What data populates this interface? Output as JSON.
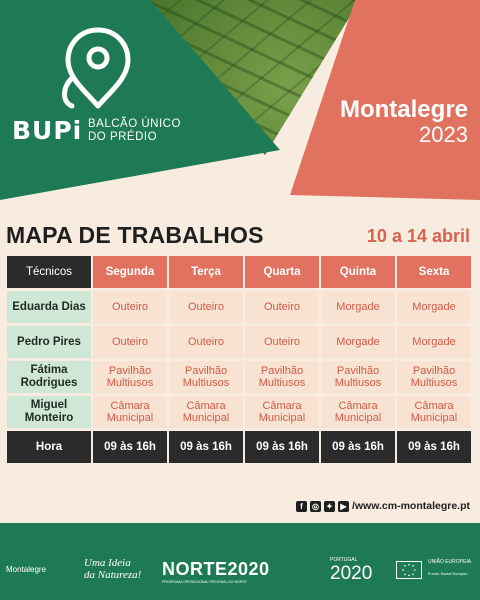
{
  "header": {
    "brand": "BUPi",
    "brand_sub_1": "BALCÃO ÚNICO",
    "brand_sub_2": "DO PRÉDIO",
    "town": "Montalegre",
    "year": "2023"
  },
  "title": "MAPA DE TRABALHOS",
  "dates": "10 a 14 abril",
  "table": {
    "header_first": "Técnicos",
    "days": [
      "Segunda",
      "Terça",
      "Quarta",
      "Quinta",
      "Sexta"
    ],
    "rows": [
      {
        "name": "Eduarda Dias",
        "values": [
          "Outeiro",
          "Outeiro",
          "Outeiro",
          "Morgade",
          "Morgade"
        ]
      },
      {
        "name": "Pedro Pires",
        "values": [
          "Outeiro",
          "Outeiro",
          "Outeiro",
          "Morgade",
          "Morgade"
        ]
      },
      {
        "name": "Fátima Rodrigues",
        "values": [
          "Pavilhão Multiusos",
          "Pavilhão Multiusos",
          "Pavilhão Multiusos",
          "Pavilhão Multiusos",
          "Pavilhão Multiusos"
        ]
      },
      {
        "name": "Miguel Monteiro",
        "values": [
          "Câmara Municipal",
          "Câmara Municipal",
          "Câmara Municipal",
          "Câmara Municipal",
          "Câmara Municipal"
        ]
      }
    ],
    "footer_label": "Hora",
    "hours": [
      "09 às 16h",
      "09 às 16h",
      "09 às 16h",
      "09 às 16h",
      "09 às 16h"
    ]
  },
  "social": {
    "url": "/www.cm-montalegre.pt",
    "icons": [
      "facebook-icon",
      "instagram-icon",
      "twitter-icon",
      "youtube-icon"
    ]
  },
  "footer": {
    "montalegre": "Montalegre",
    "slogan_1": "Uma Ideia",
    "slogan_2": "da Natureza!",
    "norte": "NORTE2020",
    "norte_sub": "PROGRAMA OPERACIONAL REGIONAL DO NORTE",
    "portugal_label": "PORTUGAL",
    "portugal": "2020",
    "eu": "UNIÃO EUROPEIA",
    "eu_sub": "Fundo Social Europeu"
  },
  "colors": {
    "green": "#1e7a55",
    "coral": "#e1725f",
    "dark": "#2b2b2b",
    "cream": "#f7ecdf"
  }
}
